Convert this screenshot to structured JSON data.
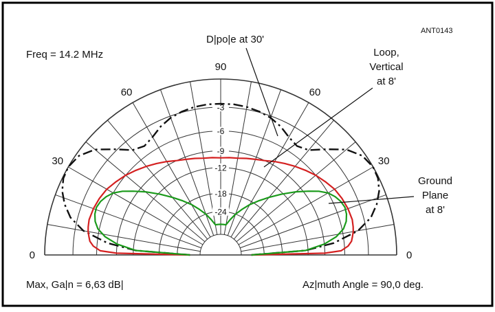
{
  "header": {
    "figure_code": "ANT0143",
    "frequency": "Freq = 14.2 MHz"
  },
  "footer": {
    "max_gain": "Max, Ga|n = 6,63 dB|",
    "azimuth": "Az|muth Angle = 90,0 deg."
  },
  "callouts": {
    "dipole": "D|po|e at 30'",
    "loop_line1": "Loop,",
    "loop_line2": "Vertical",
    "loop_line3": "at 8'",
    "ground_line1": "Ground",
    "ground_line2": "Plane",
    "ground_line3": "at 8'"
  },
  "colors": {
    "dipole": "#111111",
    "loop": "#d42020",
    "ground_plane": "#1a9a1a",
    "grid": "#333333",
    "frame": "#000000"
  },
  "chart_data": {
    "type": "polar-elevation",
    "angle_labels": [
      {
        "angle": 0,
        "text": "0"
      },
      {
        "angle": 30,
        "text": "30"
      },
      {
        "angle": 60,
        "text": "60"
      },
      {
        "angle": 90,
        "text": "90"
      },
      {
        "angle": 120,
        "text": "60"
      },
      {
        "angle": 150,
        "text": "30"
      },
      {
        "angle": 180,
        "text": "0"
      }
    ],
    "db_rings": [
      0,
      -3,
      -6,
      -9,
      -12,
      -18,
      -24
    ],
    "db_labels": [
      "-3",
      "-6",
      "-9",
      "-12",
      "-18",
      "-24"
    ],
    "series": [
      {
        "name": "D|po|e at 30'",
        "style": "dash-dot",
        "elevation_deg": [
          0,
          3,
          6,
          10,
          14,
          18,
          22,
          26,
          30,
          35,
          40,
          45,
          50,
          55,
          60,
          65,
          70,
          75,
          80,
          85,
          90
        ],
        "gain_db": [
          -30,
          -12.5,
          -7.5,
          -4,
          -2.2,
          -1.2,
          -0.5,
          -0.1,
          0,
          -0.3,
          -1.2,
          -2.8,
          -4.3,
          -4.8,
          -4.4,
          -3.7,
          -3.2,
          -2.9,
          -2.7,
          -2.6,
          -2.6
        ]
      },
      {
        "name": "Loop, Vertical at 8'",
        "style": "solid",
        "elevation_deg": [
          0,
          1,
          2,
          4,
          6,
          8,
          10,
          12,
          15,
          20,
          25,
          30,
          35,
          40,
          45,
          50,
          55,
          60,
          65,
          70,
          75,
          80,
          85,
          90
        ],
        "gain_db": [
          -30,
          -9,
          -6.5,
          -5.5,
          -5,
          -4.8,
          -4.6,
          -4.5,
          -4.4,
          -4.5,
          -4.7,
          -5,
          -5.5,
          -6,
          -6.6,
          -7.2,
          -7.8,
          -8.4,
          -9,
          -9.4,
          -9.7,
          -10,
          -10.1,
          -10.2
        ]
      },
      {
        "name": "Ground Plane at 8'",
        "style": "solid",
        "elevation_deg": [
          0,
          3,
          6,
          9,
          12,
          15,
          18,
          21,
          24,
          27,
          30,
          33,
          36,
          40,
          45,
          50,
          55,
          60,
          65,
          70,
          75,
          80,
          85,
          90
        ],
        "gain_db": [
          -30,
          -12.5,
          -9,
          -7,
          -5.8,
          -5.2,
          -4.9,
          -4.8,
          -5,
          -5.4,
          -6,
          -7,
          -8.3,
          -10,
          -12.3,
          -14.6,
          -16.8,
          -19,
          -21.5,
          -24,
          -27,
          -30,
          -30,
          -30
        ]
      }
    ]
  }
}
